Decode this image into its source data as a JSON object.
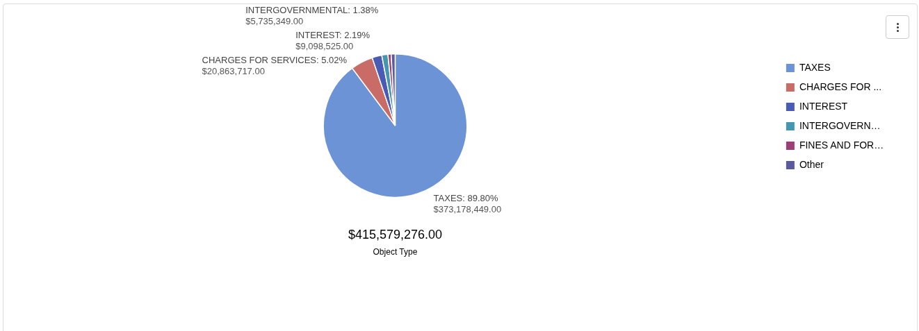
{
  "chart_data": {
    "type": "pie",
    "title": "$415,579,276.00",
    "subtitle": "Object Type",
    "categories": [
      "TAXES",
      "CHARGES FOR ...",
      "INTEREST",
      "INTERGOVERN…",
      "FINES AND FOR…",
      "Other"
    ],
    "values": [
      373178449,
      20863717,
      9098525,
      5735349,
      3000000,
      3703236
    ],
    "colors": [
      "#6b93d6",
      "#c96b66",
      "#4a5bb5",
      "#4596b0",
      "#9b3f74",
      "#5b5a9c"
    ],
    "value_labels": [
      "TAXES: 89.80%\n$373,178,449.00",
      "CHARGES FOR SERVICES: 5.02%\n$20,863,717.00",
      "INTEREST: 2.19%\n$9,098,525.00",
      "INTERGOVERNMENTAL: 1.38%\n$5,735,349.00",
      null,
      null
    ],
    "legend": "top right"
  }
}
